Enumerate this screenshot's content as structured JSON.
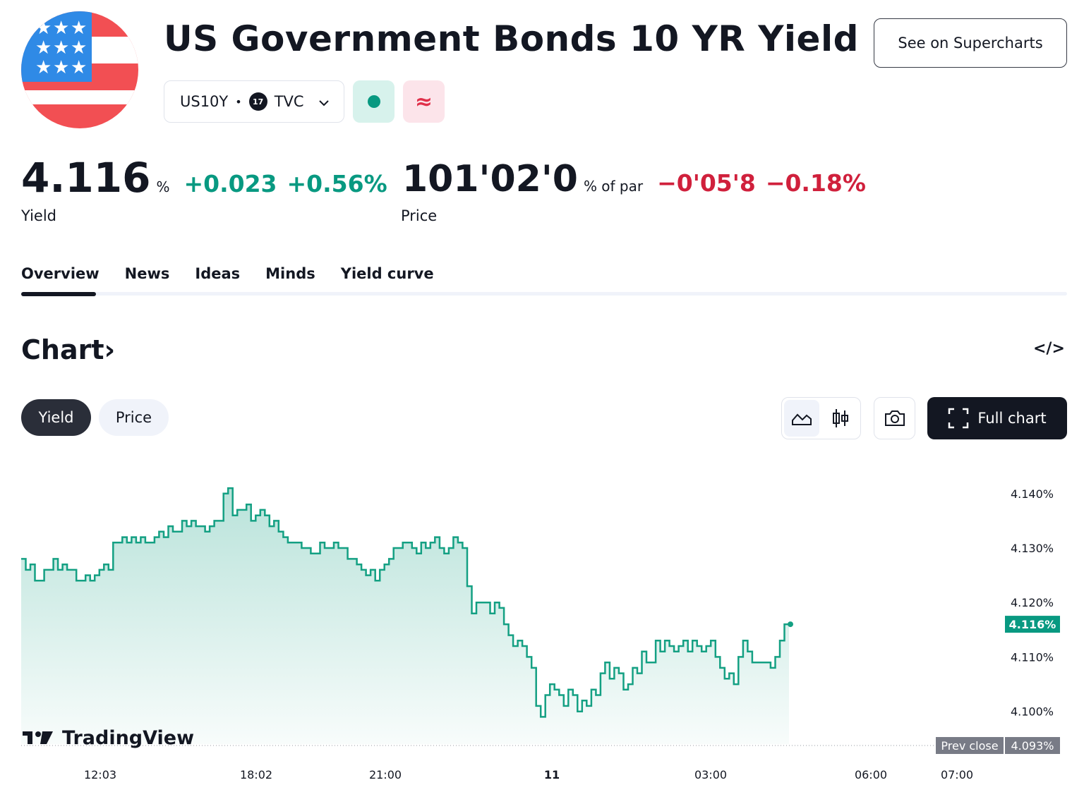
{
  "header": {
    "title": "US Government Bonds 10 YR Yield",
    "supercharts_label": "See on Supercharts",
    "symbol": "US10Y",
    "separator": "•",
    "exchange_badge": "17",
    "exchange": "TVC",
    "status_red_glyph": "≈"
  },
  "yield_quote": {
    "value": "4.116",
    "unit": "%",
    "change": "+0.023",
    "change_pct": "+0.56%",
    "label": "Yield"
  },
  "price_quote": {
    "value": "101'02'0",
    "unit": "% of par",
    "change": "−0'05'8",
    "change_pct": "−0.18%",
    "label": "Price"
  },
  "tabs": [
    "Overview",
    "News",
    "Ideas",
    "Minds",
    "Yield curve"
  ],
  "active_tab": "Overview",
  "chart_section": {
    "title": "Chart",
    "title_chevron": "›",
    "embed_glyph": "</>",
    "toggle_yield": "Yield",
    "toggle_price": "Price",
    "full_chart_label": "Full chart",
    "watermark": "TradingView"
  },
  "colors": {
    "positive": "#089981",
    "negative": "#d0203c",
    "line": "#14a083",
    "dark": "#131722"
  },
  "chart_data": {
    "type": "area",
    "y_unit": "%",
    "ylim": [
      4.094,
      4.148
    ],
    "y_ticks": [
      "4.140%",
      "4.130%",
      "4.120%",
      "4.110%",
      "4.100%"
    ],
    "y_tick_values": [
      4.14,
      4.13,
      4.12,
      4.11,
      4.1
    ],
    "x_ticks": [
      "12:03",
      "18:02",
      "21:00",
      "11",
      "03:00",
      "06:00",
      "07:00"
    ],
    "last_value": 4.116,
    "last_label": "4.116%",
    "prev_close_label": "Prev close",
    "prev_close_value": 4.093,
    "prev_close_text": "4.093%",
    "grid": false,
    "series": [
      {
        "values": [
          4.128,
          4.126,
          4.127,
          4.124,
          4.124,
          4.126,
          4.126,
          4.128,
          4.126,
          4.127,
          4.126,
          4.126,
          4.124,
          4.124,
          4.125,
          4.124,
          4.125,
          4.126,
          4.127,
          4.126,
          4.131,
          4.131,
          4.132,
          4.131,
          4.132,
          4.131,
          4.132,
          4.131,
          4.131,
          4.132,
          4.133,
          4.132,
          4.134,
          4.133,
          4.133,
          4.135,
          4.134,
          4.135,
          4.134,
          4.134,
          4.133,
          4.134,
          4.135,
          4.135,
          4.14,
          4.141,
          4.136,
          4.137,
          4.137,
          4.138,
          4.135,
          4.136,
          4.137,
          4.136,
          4.134,
          4.135,
          4.133,
          4.132,
          4.131,
          4.131,
          4.131,
          4.13,
          4.13,
          4.129,
          4.129,
          4.131,
          4.13,
          4.13,
          4.131,
          4.13,
          4.13,
          4.128,
          4.128,
          4.127,
          4.126,
          4.125,
          4.126,
          4.124,
          4.126,
          4.127,
          4.128,
          4.13,
          4.13,
          4.131,
          4.131,
          4.13,
          4.129,
          4.131,
          4.13,
          4.131,
          4.132,
          4.13,
          4.129,
          4.13,
          4.132,
          4.131,
          4.13,
          4.123,
          4.118,
          4.12,
          4.12,
          4.12,
          4.118,
          4.12,
          4.119,
          4.116,
          4.114,
          4.112,
          4.113,
          4.112,
          4.11,
          4.108,
          4.101,
          4.099,
          4.103,
          4.105,
          4.104,
          4.103,
          4.101,
          4.104,
          4.103,
          4.1,
          4.102,
          4.101,
          4.104,
          4.103,
          4.107,
          4.109,
          4.106,
          4.108,
          4.107,
          4.104,
          4.105,
          4.108,
          4.107,
          4.111,
          4.109,
          4.109,
          4.113,
          4.111,
          4.113,
          4.112,
          4.111,
          4.112,
          4.113,
          4.111,
          4.113,
          4.112,
          4.111,
          4.112,
          4.113,
          4.11,
          4.108,
          4.106,
          4.107,
          4.105,
          4.11,
          4.113,
          4.111,
          4.109,
          4.109,
          4.109,
          4.109,
          4.108,
          4.11,
          4.113,
          4.116,
          4.116
        ]
      }
    ]
  }
}
